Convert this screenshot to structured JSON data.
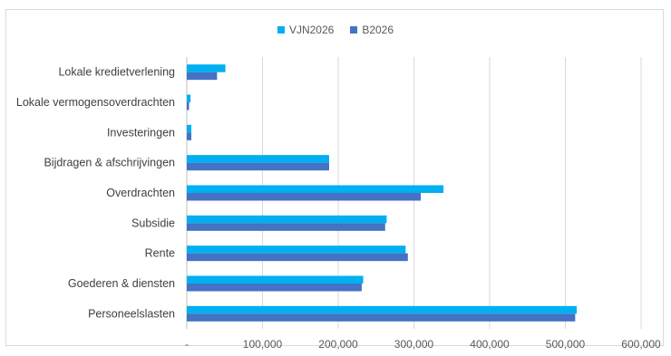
{
  "chart_data": {
    "type": "bar",
    "orientation": "horizontal",
    "categories": [
      "Lokale kredietverlening",
      "Lokale vermogensoverdrachten",
      "Investeringen",
      "Bijdragen & afschrijvingen",
      "Overdrachten",
      "Subsidie",
      "Rente",
      "Goederen & diensten",
      "Personeelslasten"
    ],
    "series": [
      {
        "name": "VJN2026",
        "color": "#00b0f0",
        "values": [
          51000,
          5000,
          6000,
          188000,
          339000,
          264000,
          289000,
          233000,
          515000
        ]
      },
      {
        "name": "B2026",
        "color": "#4472c4",
        "values": [
          40000,
          3000,
          6000,
          188000,
          309000,
          262000,
          292000,
          231000,
          513000
        ]
      }
    ],
    "xlim": [
      0,
      600000
    ],
    "x_ticks": [
      0,
      100000,
      200000,
      300000,
      400000,
      500000,
      600000
    ],
    "x_tick_labels": [
      "-",
      "100,000",
      "200,000",
      "300,000",
      "400,000",
      "500,000",
      "600,000"
    ],
    "title": "",
    "xlabel": "",
    "ylabel": "",
    "grid": "vertical",
    "legend_position": "top"
  }
}
